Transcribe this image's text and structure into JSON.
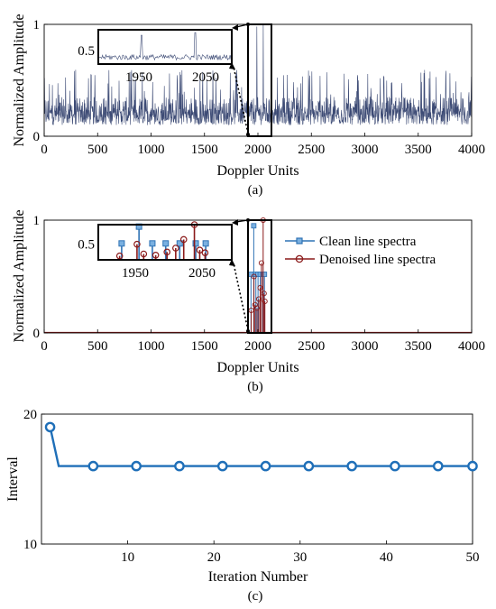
{
  "chart_data": [
    {
      "type": "line",
      "panel_label": "(a)",
      "xlabel": "Doppler Units",
      "ylabel": "Normalized Amplitude",
      "xlim": [
        0,
        4000
      ],
      "ylim": [
        0,
        1
      ],
      "xticks": [
        0,
        500,
        1000,
        1500,
        2000,
        2500,
        3000,
        3500,
        4000
      ],
      "yticks": [
        0,
        1
      ],
      "grid": false,
      "series": [
        {
          "color": "#3d4b75",
          "description": "dense noisy spectrum; base level about 0.1 to 0.35 with spikes up to about 0.6; peak near 1.0 close to 2050",
          "noise_floor": [
            0.1,
            0.35
          ],
          "spike_max": 0.6,
          "peak": {
            "x": 2050,
            "y": 1.0
          }
        }
      ],
      "highlight_box": {
        "xrange": [
          1900,
          2100
        ],
        "yrange": [
          0,
          1
        ]
      },
      "inset": {
        "xticks": [
          1950,
          2050
        ],
        "yticks": [
          0.5
        ],
        "xlim": [
          1900,
          2100
        ],
        "ylim": [
          0.3,
          0.8
        ]
      }
    },
    {
      "type": "line",
      "panel_label": "(b)",
      "xlabel": "Doppler Units",
      "ylabel": "Normalized Amplitude",
      "xlim": [
        0,
        4000
      ],
      "ylim": [
        0,
        1
      ],
      "xticks": [
        0,
        500,
        1000,
        1500,
        2000,
        2500,
        3000,
        3500,
        4000
      ],
      "yticks": [
        0,
        1
      ],
      "grid": false,
      "legend_position": "right",
      "series": [
        {
          "name": "Clean line spectra",
          "color": "#2f73b5",
          "marker": "square",
          "x": [
            1935,
            1961,
            1981,
            2001,
            2022,
            2046,
            2061
          ],
          "y": [
            0.52,
            0.95,
            0.52,
            0.52,
            0.52,
            0.52,
            0.52
          ]
        },
        {
          "name": "Denoised line spectra",
          "color": "#8b1a1a",
          "marker": "circle",
          "x": [
            1932,
            1958,
            1968,
            1986,
            2003,
            2016,
            2028,
            2044,
            2052,
            2060
          ],
          "y": [
            0.2,
            0.5,
            0.25,
            0.22,
            0.3,
            0.4,
            0.62,
            1.0,
            0.35,
            0.28
          ]
        }
      ],
      "highlight_box": {
        "xrange": [
          1900,
          2100
        ],
        "yrange": [
          0,
          1
        ]
      },
      "inset": {
        "xticks": [
          1950,
          2050
        ],
        "yticks": [
          0.5
        ],
        "xlim": [
          1900,
          2100
        ],
        "ylim": [
          0.1,
          1.0
        ]
      }
    },
    {
      "type": "line",
      "panel_label": "(c)",
      "xlabel": "Iteration Number",
      "ylabel": "Interval",
      "xlim": [
        0,
        50
      ],
      "ylim": [
        10,
        20
      ],
      "xticks": [
        10,
        20,
        30,
        40,
        50
      ],
      "yticks": [
        10,
        20
      ],
      "grid": false,
      "series": [
        {
          "color": "#1f6fb8",
          "marker": "circle",
          "x": [
            1,
            2,
            3,
            4,
            5,
            6,
            7,
            8,
            9,
            10,
            11,
            12,
            13,
            14,
            15,
            16,
            17,
            18,
            19,
            20,
            21,
            22,
            23,
            24,
            25,
            26,
            27,
            28,
            29,
            30,
            31,
            32,
            33,
            34,
            35,
            36,
            37,
            38,
            39,
            40,
            41,
            42,
            43,
            44,
            45,
            46,
            47,
            48,
            49,
            50
          ],
          "y": [
            19,
            16,
            16,
            16,
            16,
            16,
            16,
            16,
            16,
            16,
            16,
            16,
            16,
            16,
            16,
            16,
            16,
            16,
            16,
            16,
            16,
            16,
            16,
            16,
            16,
            16,
            16,
            16,
            16,
            16,
            16,
            16,
            16,
            16,
            16,
            16,
            16,
            16,
            16,
            16,
            16,
            16,
            16,
            16,
            16,
            16,
            16,
            16,
            16,
            16
          ],
          "marker_x": [
            1,
            6,
            11,
            16,
            21,
            26,
            31,
            36,
            41,
            46,
            50
          ]
        }
      ]
    }
  ]
}
